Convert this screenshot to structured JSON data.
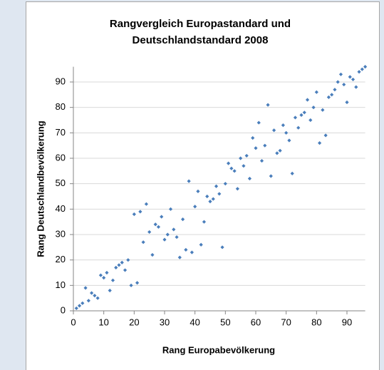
{
  "chart_data": {
    "type": "scatter",
    "title": [
      "Rangvergleich Europastandard  und",
      "Deutschlandstandard 2008"
    ],
    "x_label": "Rang Europabevölkerung",
    "y_label": "Rang Deutschlandbevölkerung",
    "color": "#4a7ebb",
    "grid": true,
    "xlim": [
      0,
      96
    ],
    "ylim": [
      0,
      96
    ],
    "xticks": [
      0,
      10,
      20,
      30,
      40,
      50,
      60,
      70,
      80,
      90
    ],
    "yticks": [
      0,
      10,
      20,
      30,
      40,
      50,
      60,
      70,
      80,
      90
    ],
    "x": [
      1,
      2,
      3,
      4,
      5,
      6,
      7,
      8,
      9,
      10,
      11,
      12,
      13,
      14,
      15,
      16,
      17,
      18,
      19,
      20,
      21,
      22,
      23,
      24,
      25,
      26,
      27,
      28,
      29,
      30,
      31,
      32,
      33,
      34,
      35,
      36,
      37,
      38,
      39,
      40,
      41,
      42,
      43,
      44,
      45,
      46,
      47,
      48,
      49,
      50,
      51,
      52,
      53,
      54,
      55,
      56,
      57,
      58,
      59,
      60,
      61,
      62,
      63,
      64,
      65,
      66,
      67,
      68,
      69,
      70,
      71,
      72,
      73,
      74,
      75,
      76,
      77,
      78,
      79,
      80,
      81,
      82,
      83,
      84,
      85,
      86,
      87,
      88,
      89,
      90,
      91,
      92,
      93,
      94,
      95,
      96
    ],
    "values": [
      1,
      2,
      3,
      9,
      4,
      7,
      6,
      5,
      14,
      13,
      15,
      8,
      12,
      17,
      18,
      19,
      16,
      20,
      10,
      38,
      11,
      39,
      27,
      42,
      31,
      22,
      34,
      33,
      37,
      28,
      30,
      40,
      32,
      29,
      21,
      36,
      24,
      51,
      23,
      41,
      47,
      26,
      35,
      45,
      43,
      44,
      49,
      46,
      25,
      50,
      58,
      56,
      55,
      48,
      60,
      57,
      61,
      52,
      68,
      64,
      74,
      59,
      65,
      81,
      53,
      71,
      62,
      63,
      73,
      70,
      67,
      54,
      76,
      72,
      77,
      78,
      83,
      75,
      80,
      86,
      66,
      79,
      69,
      84,
      85,
      87,
      90,
      93,
      89,
      82,
      92,
      91,
      88,
      94,
      95,
      96
    ]
  }
}
